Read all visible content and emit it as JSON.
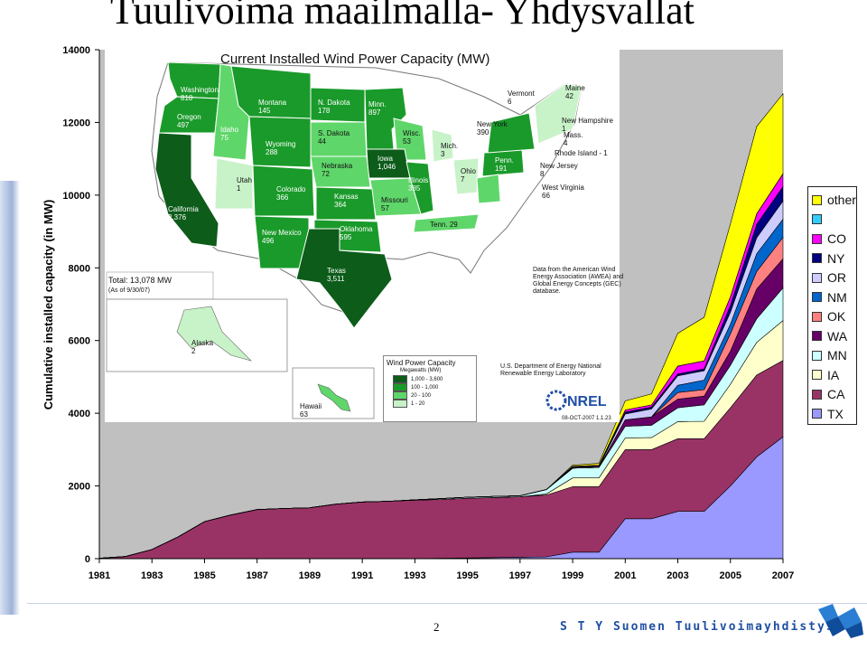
{
  "slide": {
    "title": "Tuulivoima maailmalla- Yhdysvallat",
    "page_number": "2",
    "org_name": "S T Y  Suomen Tuulivoimayhdistys ry"
  },
  "chart_data": {
    "type": "area",
    "stacked": true,
    "ylabel": "Cumulative installed capacity (in MW)",
    "ylim": [
      0,
      14000
    ],
    "yticks": [
      0,
      2000,
      4000,
      6000,
      8000,
      10000,
      12000,
      14000
    ],
    "xlim": [
      1981,
      2007
    ],
    "xticks": [
      1981,
      1983,
      1985,
      1987,
      1989,
      1991,
      1993,
      1995,
      1997,
      1999,
      2001,
      2003,
      2005,
      2007
    ],
    "x": [
      1981,
      1982,
      1983,
      1984,
      1985,
      1986,
      1987,
      1988,
      1989,
      1990,
      1991,
      1992,
      1993,
      1994,
      1995,
      1996,
      1997,
      1998,
      1999,
      2000,
      2001,
      2002,
      2003,
      2004,
      2005,
      2006,
      2007
    ],
    "legend_position": "right",
    "grid": false,
    "plot_background": "#c0c0c0",
    "series": [
      {
        "name": "TX",
        "color": "#9999ff",
        "values": [
          0,
          0,
          0,
          0,
          0,
          0,
          0,
          0,
          0,
          0,
          0,
          0,
          0,
          10,
          20,
          30,
          40,
          50,
          180,
          180,
          1100,
          1100,
          1300,
          1300,
          2000,
          2800,
          3350
        ]
      },
      {
        "name": "CA",
        "color": "#993366",
        "values": [
          10,
          60,
          250,
          600,
          1020,
          1200,
          1350,
          1380,
          1400,
          1500,
          1560,
          1580,
          1610,
          1620,
          1640,
          1650,
          1660,
          1700,
          1800,
          1800,
          1900,
          1900,
          2000,
          2000,
          2150,
          2250,
          2100
        ]
      },
      {
        "name": "IA",
        "color": "#ffffcc",
        "values": [
          0,
          0,
          0,
          0,
          0,
          0,
          0,
          0,
          0,
          0,
          0,
          0,
          0,
          0,
          0,
          0,
          0,
          30,
          240,
          240,
          320,
          330,
          470,
          480,
          650,
          900,
          1100
        ]
      },
      {
        "name": "MN",
        "color": "#ccffff",
        "values": [
          0,
          0,
          0,
          0,
          0,
          0,
          0,
          0,
          0,
          0,
          0,
          0,
          10,
          20,
          30,
          30,
          30,
          120,
          270,
          290,
          320,
          340,
          380,
          450,
          520,
          650,
          900
        ]
      },
      {
        "name": "WA",
        "color": "#660066",
        "values": [
          0,
          0,
          0,
          0,
          0,
          0,
          0,
          0,
          0,
          0,
          0,
          0,
          0,
          0,
          0,
          0,
          0,
          0,
          0,
          0,
          180,
          230,
          240,
          240,
          390,
          820,
          800
        ]
      },
      {
        "name": "OK",
        "color": "#ff8080",
        "values": [
          0,
          0,
          0,
          0,
          0,
          0,
          0,
          0,
          0,
          0,
          0,
          0,
          0,
          0,
          0,
          0,
          0,
          0,
          0,
          0,
          0,
          0,
          180,
          180,
          480,
          480,
          590
        ]
      },
      {
        "name": "NM",
        "color": "#0066cc",
        "values": [
          0,
          0,
          0,
          0,
          0,
          0,
          0,
          0,
          0,
          0,
          0,
          0,
          0,
          0,
          0,
          0,
          0,
          0,
          0,
          0,
          0,
          0,
          200,
          260,
          260,
          490,
          500
        ]
      },
      {
        "name": "OR",
        "color": "#ccccff",
        "values": [
          0,
          0,
          0,
          0,
          0,
          0,
          0,
          0,
          0,
          0,
          0,
          0,
          0,
          0,
          0,
          0,
          0,
          0,
          20,
          20,
          160,
          220,
          260,
          260,
          330,
          440,
          500
        ]
      },
      {
        "name": "NY",
        "color": "#000080",
        "values": [
          0,
          0,
          0,
          0,
          0,
          0,
          0,
          0,
          0,
          0,
          0,
          0,
          0,
          0,
          0,
          0,
          0,
          0,
          10,
          20,
          50,
          50,
          50,
          50,
          190,
          370,
          390
        ]
      },
      {
        "name": "CO",
        "color": "#ff00ff",
        "values": [
          0,
          0,
          0,
          0,
          0,
          0,
          0,
          0,
          0,
          0,
          0,
          0,
          0,
          0,
          0,
          0,
          0,
          0,
          20,
          20,
          60,
          60,
          220,
          220,
          240,
          290,
          360
        ]
      },
      {
        "name": "",
        "color": "#33ccff",
        "values": [
          0,
          0,
          0,
          0,
          0,
          0,
          0,
          0,
          0,
          0,
          0,
          0,
          0,
          0,
          0,
          0,
          0,
          0,
          0,
          0,
          0,
          0,
          0,
          0,
          0,
          0,
          0
        ]
      },
      {
        "name": "other",
        "color": "#ffff00",
        "values": [
          0,
          0,
          0,
          0,
          0,
          0,
          0,
          0,
          0,
          0,
          0,
          0,
          0,
          0,
          0,
          0,
          0,
          0,
          30,
          50,
          250,
          300,
          900,
          1200,
          2000,
          2400,
          2200
        ]
      }
    ]
  },
  "map_inset": {
    "title": "Current Installed Wind Power Capacity (MW)",
    "total": "Total:  13,078 MW",
    "total_note": "(As of 9/30/07)",
    "source_note": "Data from the American Wind Energy Association (AWEA) and Global Energy Concepts (GEC) database.",
    "doe_note": "U.S. Department of Energy National Renewable Energy Laboratory",
    "date_note": "08-OCT-2007 1.1.23",
    "nrel_logo": "NREL",
    "legend": {
      "title": "Wind Power Capacity",
      "unit": "Megawatts (MW)",
      "items": [
        {
          "label": "1,000 - 3,600",
          "color": "#0d5c1a"
        },
        {
          "label": "100 - 1,000",
          "color": "#1a9a2a"
        },
        {
          "label": "20 - 100",
          "color": "#5fd66a"
        },
        {
          "label": "1 - 20",
          "color": "#c8f2c8"
        }
      ]
    },
    "states": [
      {
        "name": "Washington",
        "value": "818"
      },
      {
        "name": "Oregon",
        "value": "497"
      },
      {
        "name": "Idaho",
        "value": "75"
      },
      {
        "name": "Montana",
        "value": "145"
      },
      {
        "name": "Wyoming",
        "value": "288"
      },
      {
        "name": "N. Dakota",
        "value": "178"
      },
      {
        "name": "S. Dakota",
        "value": "44"
      },
      {
        "name": "Minn.",
        "value": "897"
      },
      {
        "name": "Wisc.",
        "value": "53"
      },
      {
        "name": "Mich.",
        "value": "3"
      },
      {
        "name": "Iowa",
        "value": "1,046"
      },
      {
        "name": "Nebraska",
        "value": "72"
      },
      {
        "name": "Utah",
        "value": "1"
      },
      {
        "name": "Colorado",
        "value": "366"
      },
      {
        "name": "Kansas",
        "value": "364"
      },
      {
        "name": "Illinois",
        "value": "385"
      },
      {
        "name": "Missouri",
        "value": "57"
      },
      {
        "name": "Ohio",
        "value": "7"
      },
      {
        "name": "California",
        "value": "2,376"
      },
      {
        "name": "New Mexico",
        "value": "496"
      },
      {
        "name": "Oklahoma",
        "value": "595"
      },
      {
        "name": "Texas",
        "value": "3,511"
      },
      {
        "name": "Tenn.",
        "value": "29"
      },
      {
        "name": "Penn.",
        "value": "191"
      },
      {
        "name": "New York",
        "value": "390"
      },
      {
        "name": "Vermont",
        "value": "6"
      },
      {
        "name": "Maine",
        "value": "42"
      },
      {
        "name": "New Hampshire",
        "value": "1"
      },
      {
        "name": "Mass.",
        "value": "4"
      },
      {
        "name": "Rhode Island",
        "value": "1"
      },
      {
        "name": "New Jersey",
        "value": "8"
      },
      {
        "name": "West Virginia",
        "value": "66"
      },
      {
        "name": "Alaska",
        "value": "2"
      },
      {
        "name": "Hawaii",
        "value": "63"
      }
    ]
  }
}
